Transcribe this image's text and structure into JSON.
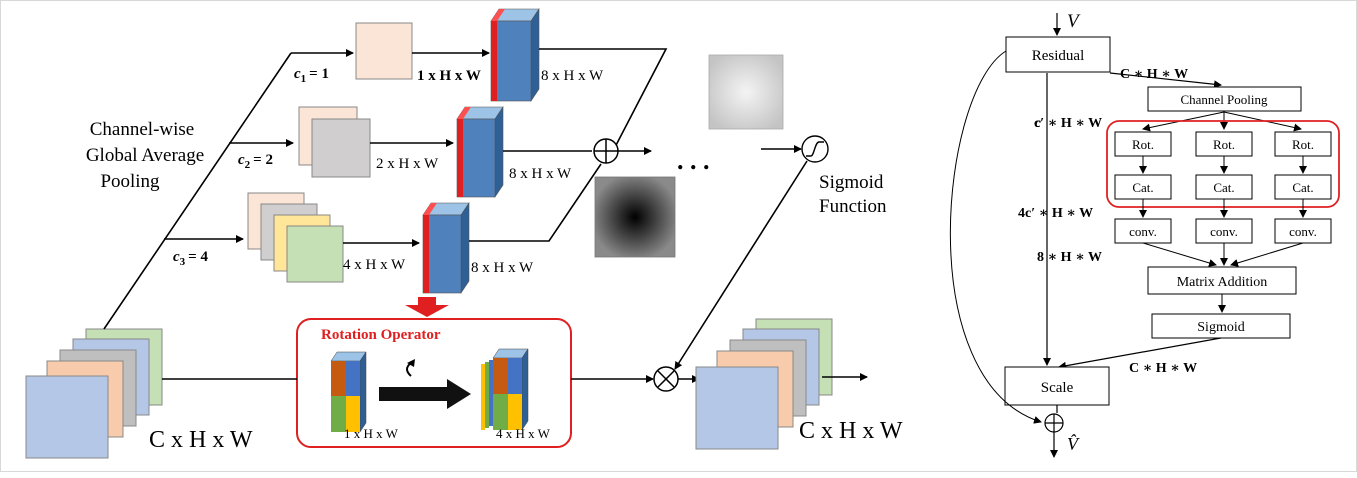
{
  "left": {
    "branches": [
      {
        "c_label": "c",
        "c_sub": "1",
        "c_val": "= 1",
        "small_dim": "1 x H x W",
        "big_dim": "8 x H x W"
      },
      {
        "c_label": "c",
        "c_sub": "2",
        "c_val": "= 2",
        "small_dim": "2 x H x W",
        "big_dim": "8 x H x W"
      },
      {
        "c_label": "c",
        "c_sub": "3",
        "c_val": "= 4",
        "small_dim": "4 x H x W",
        "big_dim": "8 x H x W"
      }
    ],
    "gap_label": [
      "Channel-wise",
      "Global Average",
      "Pooling"
    ],
    "dots": ". . .",
    "sigmoid_label": [
      "Sigmoid",
      "Function"
    ],
    "input_dim": "C x H x W",
    "output_dim": "C x H x W",
    "rotation": {
      "title": "Rotation Operator",
      "before_dim": "1 x H x W",
      "after_dim": "4 x H x W"
    },
    "colors": {
      "peach": "#fbe5d6",
      "gray": "#d0cece",
      "yellow": "#ffe699",
      "green": "#c5e0b4",
      "blue": "#b4c7e7",
      "blue_block": "#4a7ebb",
      "red": "#e02020"
    }
  },
  "right": {
    "input_symbol": "V",
    "output_symbol": "V̂",
    "residual": "Residual",
    "channel_pooling": "Channel Pooling",
    "rot": "Rot.",
    "cat": "Cat.",
    "conv": "conv.",
    "matrix_addition": "Matrix Addition",
    "sigmoid": "Sigmoid",
    "scale": "Scale",
    "lbl_chw_top": "C ∗ H ∗ W",
    "lbl_c_prime": "c′ ∗ H ∗ W",
    "lbl_4c_prime": "4c′ ∗ H ∗ W",
    "lbl_8hw": "8 ∗ H ∗ W",
    "lbl_chw_bottom": "C ∗ H ∗ W"
  }
}
